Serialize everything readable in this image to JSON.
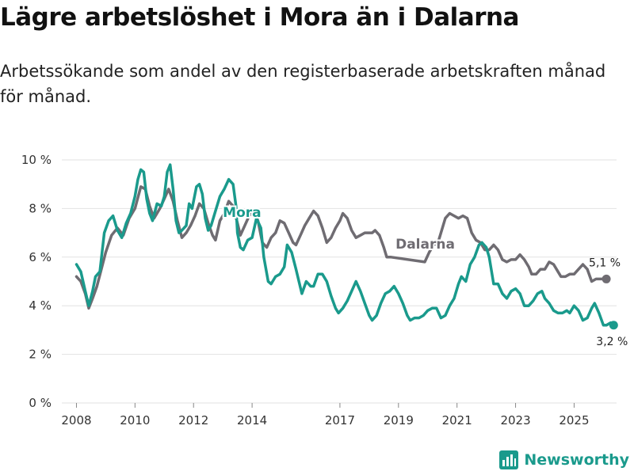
{
  "header": {
    "title": "Lägre arbetslöshet i Mora än i Dalarna",
    "subtitle": "Arbetssökande som andel av den registerbaserade arbetskraften månad för månad."
  },
  "brand": {
    "name": "Newsworthy",
    "color": "#1a9a8c"
  },
  "chart_data": {
    "type": "line",
    "title": "Lägre arbetslöshet i Mora än i Dalarna",
    "xlabel": "",
    "ylabel": "",
    "xlim": [
      2007.5,
      2026.45
    ],
    "ylim": [
      0,
      10
    ],
    "y_ticks": [
      0,
      2,
      4,
      6,
      8,
      10
    ],
    "y_tick_labels": [
      "0 %",
      "2 %",
      "4 %",
      "6 %",
      "8 %",
      "10 %"
    ],
    "x_ticks": [
      2008,
      2010,
      2012,
      2014,
      2017,
      2019,
      2021,
      2023,
      2025
    ],
    "x_tick_labels": [
      "2008",
      "2010",
      "2012",
      "2014",
      "2017",
      "2019",
      "2021",
      "2023",
      "2025"
    ],
    "grid": true,
    "legend": "inline labels",
    "series": [
      {
        "name": "Dalarna",
        "color": "#6f6c72",
        "end_label": "5,1 %",
        "points": [
          [
            2008.0,
            5.2
          ],
          [
            2008.15,
            5.0
          ],
          [
            2008.3,
            4.5
          ],
          [
            2008.42,
            3.9
          ],
          [
            2008.55,
            4.3
          ],
          [
            2008.7,
            4.8
          ],
          [
            2008.85,
            5.5
          ],
          [
            2009.0,
            6.2
          ],
          [
            2009.2,
            6.9
          ],
          [
            2009.4,
            7.2
          ],
          [
            2009.6,
            6.9
          ],
          [
            2009.8,
            7.6
          ],
          [
            2010.0,
            8.0
          ],
          [
            2010.2,
            8.9
          ],
          [
            2010.35,
            8.8
          ],
          [
            2010.5,
            8.1
          ],
          [
            2010.65,
            7.6
          ],
          [
            2010.85,
            8.0
          ],
          [
            2011.0,
            8.4
          ],
          [
            2011.15,
            8.8
          ],
          [
            2011.3,
            8.3
          ],
          [
            2011.45,
            7.5
          ],
          [
            2011.6,
            6.8
          ],
          [
            2011.75,
            7.0
          ],
          [
            2011.9,
            7.3
          ],
          [
            2012.05,
            7.7
          ],
          [
            2012.2,
            8.2
          ],
          [
            2012.35,
            8.0
          ],
          [
            2012.5,
            7.4
          ],
          [
            2012.65,
            6.9
          ],
          [
            2012.75,
            6.7
          ],
          [
            2012.9,
            7.5
          ],
          [
            2013.05,
            7.8
          ],
          [
            2013.2,
            8.3
          ],
          [
            2013.35,
            8.1
          ],
          [
            2013.5,
            7.4
          ],
          [
            2013.6,
            6.9
          ],
          [
            2013.75,
            7.3
          ],
          [
            2013.9,
            7.7
          ],
          [
            2014.05,
            7.9
          ],
          [
            2014.2,
            7.5
          ],
          [
            2014.35,
            6.6
          ],
          [
            2014.5,
            6.4
          ],
          [
            2014.65,
            6.8
          ],
          [
            2014.8,
            7.0
          ],
          [
            2014.95,
            7.5
          ],
          [
            2015.1,
            7.4
          ],
          [
            2015.25,
            7.0
          ],
          [
            2015.4,
            6.6
          ],
          [
            2015.5,
            6.5
          ],
          [
            2015.65,
            6.9
          ],
          [
            2015.8,
            7.3
          ],
          [
            2015.95,
            7.6
          ],
          [
            2016.1,
            7.9
          ],
          [
            2016.25,
            7.7
          ],
          [
            2016.4,
            7.2
          ],
          [
            2016.55,
            6.6
          ],
          [
            2016.7,
            6.8
          ],
          [
            2016.85,
            7.2
          ],
          [
            2017.0,
            7.5
          ],
          [
            2017.1,
            7.8
          ],
          [
            2017.25,
            7.6
          ],
          [
            2017.4,
            7.1
          ],
          [
            2017.55,
            6.8
          ],
          [
            2017.7,
            6.9
          ],
          [
            2017.85,
            7.0
          ],
          [
            2018.0,
            7.0
          ],
          [
            2018.1,
            7.0
          ],
          [
            2018.2,
            7.1
          ],
          [
            2018.35,
            6.9
          ],
          [
            2018.5,
            6.4
          ],
          [
            2018.6,
            6.0
          ],
          [
            2018.75,
            6.0
          ],
          [
            2019.9,
            5.8
          ],
          [
            2020.05,
            6.2
          ],
          [
            2020.2,
            6.5
          ],
          [
            2020.35,
            6.6
          ],
          [
            2020.45,
            7.0
          ],
          [
            2020.6,
            7.6
          ],
          [
            2020.75,
            7.8
          ],
          [
            2020.9,
            7.7
          ],
          [
            2021.05,
            7.6
          ],
          [
            2021.2,
            7.7
          ],
          [
            2021.35,
            7.6
          ],
          [
            2021.5,
            7.0
          ],
          [
            2021.65,
            6.7
          ],
          [
            2021.8,
            6.6
          ],
          [
            2021.95,
            6.3
          ],
          [
            2022.1,
            6.3
          ],
          [
            2022.25,
            6.5
          ],
          [
            2022.4,
            6.3
          ],
          [
            2022.55,
            5.9
          ],
          [
            2022.7,
            5.8
          ],
          [
            2022.85,
            5.9
          ],
          [
            2023.0,
            5.9
          ],
          [
            2023.15,
            6.1
          ],
          [
            2023.3,
            5.9
          ],
          [
            2023.45,
            5.6
          ],
          [
            2023.55,
            5.3
          ],
          [
            2023.7,
            5.3
          ],
          [
            2023.85,
            5.5
          ],
          [
            2024.0,
            5.5
          ],
          [
            2024.15,
            5.8
          ],
          [
            2024.3,
            5.7
          ],
          [
            2024.45,
            5.4
          ],
          [
            2024.55,
            5.2
          ],
          [
            2024.7,
            5.2
          ],
          [
            2024.85,
            5.3
          ],
          [
            2025.0,
            5.3
          ],
          [
            2025.15,
            5.5
          ],
          [
            2025.3,
            5.7
          ],
          [
            2025.45,
            5.5
          ],
          [
            2025.6,
            5.0
          ],
          [
            2025.75,
            5.1
          ],
          [
            2025.9,
            5.1
          ],
          [
            2026.1,
            5.1
          ]
        ]
      },
      {
        "name": "Mora",
        "color": "#1a9a8c",
        "end_label": "3,2 %",
        "points": [
          [
            2008.0,
            5.7
          ],
          [
            2008.15,
            5.4
          ],
          [
            2008.3,
            4.6
          ],
          [
            2008.42,
            4.0
          ],
          [
            2008.55,
            4.6
          ],
          [
            2008.65,
            5.2
          ],
          [
            2008.8,
            5.4
          ],
          [
            2008.95,
            7.0
          ],
          [
            2009.1,
            7.5
          ],
          [
            2009.25,
            7.7
          ],
          [
            2009.4,
            7.1
          ],
          [
            2009.55,
            6.8
          ],
          [
            2009.7,
            7.4
          ],
          [
            2009.85,
            7.8
          ],
          [
            2010.0,
            8.5
          ],
          [
            2010.1,
            9.2
          ],
          [
            2010.2,
            9.6
          ],
          [
            2010.3,
            9.5
          ],
          [
            2010.4,
            8.4
          ],
          [
            2010.5,
            7.8
          ],
          [
            2010.6,
            7.5
          ],
          [
            2010.75,
            8.2
          ],
          [
            2010.9,
            8.1
          ],
          [
            2011.0,
            8.5
          ],
          [
            2011.1,
            9.5
          ],
          [
            2011.2,
            9.8
          ],
          [
            2011.3,
            8.8
          ],
          [
            2011.4,
            7.5
          ],
          [
            2011.5,
            7.0
          ],
          [
            2011.6,
            7.1
          ],
          [
            2011.75,
            7.3
          ],
          [
            2011.85,
            8.2
          ],
          [
            2011.95,
            8.0
          ],
          [
            2012.1,
            8.9
          ],
          [
            2012.2,
            9.0
          ],
          [
            2012.3,
            8.6
          ],
          [
            2012.4,
            7.6
          ],
          [
            2012.5,
            7.1
          ],
          [
            2012.6,
            7.3
          ],
          [
            2012.75,
            7.9
          ],
          [
            2012.9,
            8.5
          ],
          [
            2013.05,
            8.8
          ],
          [
            2013.2,
            9.2
          ],
          [
            2013.35,
            9.0
          ],
          [
            2013.45,
            8.1
          ],
          [
            2013.5,
            7.0
          ],
          [
            2013.6,
            6.4
          ],
          [
            2013.7,
            6.3
          ],
          [
            2013.85,
            6.7
          ],
          [
            2014.0,
            6.8
          ],
          [
            2014.15,
            7.6
          ],
          [
            2014.3,
            7.2
          ],
          [
            2014.4,
            6.0
          ],
          [
            2014.55,
            5.0
          ],
          [
            2014.65,
            4.9
          ],
          [
            2014.8,
            5.2
          ],
          [
            2014.95,
            5.3
          ],
          [
            2015.1,
            5.6
          ],
          [
            2015.2,
            6.5
          ],
          [
            2015.35,
            6.2
          ],
          [
            2015.5,
            5.5
          ],
          [
            2015.6,
            5.0
          ],
          [
            2015.7,
            4.5
          ],
          [
            2015.85,
            5.0
          ],
          [
            2016.0,
            4.8
          ],
          [
            2016.1,
            4.8
          ],
          [
            2016.25,
            5.3
          ],
          [
            2016.4,
            5.3
          ],
          [
            2016.55,
            5.0
          ],
          [
            2016.7,
            4.4
          ],
          [
            2016.85,
            3.9
          ],
          [
            2016.95,
            3.7
          ],
          [
            2017.1,
            3.9
          ],
          [
            2017.25,
            4.2
          ],
          [
            2017.4,
            4.6
          ],
          [
            2017.55,
            5.0
          ],
          [
            2017.7,
            4.6
          ],
          [
            2017.85,
            4.1
          ],
          [
            2018.0,
            3.6
          ],
          [
            2018.1,
            3.4
          ],
          [
            2018.25,
            3.6
          ],
          [
            2018.4,
            4.1
          ],
          [
            2018.55,
            4.5
          ],
          [
            2018.7,
            4.6
          ],
          [
            2018.85,
            4.8
          ],
          [
            2019.0,
            4.5
          ],
          [
            2019.15,
            4.1
          ],
          [
            2019.3,
            3.6
          ],
          [
            2019.4,
            3.4
          ],
          [
            2019.55,
            3.5
          ],
          [
            2019.7,
            3.5
          ],
          [
            2019.85,
            3.6
          ],
          [
            2020.0,
            3.8
          ],
          [
            2020.15,
            3.9
          ],
          [
            2020.3,
            3.9
          ],
          [
            2020.45,
            3.5
          ],
          [
            2020.6,
            3.6
          ],
          [
            2020.75,
            4.0
          ],
          [
            2020.9,
            4.3
          ],
          [
            2021.05,
            4.9
          ],
          [
            2021.15,
            5.2
          ],
          [
            2021.3,
            5.0
          ],
          [
            2021.45,
            5.7
          ],
          [
            2021.6,
            6.0
          ],
          [
            2021.75,
            6.5
          ],
          [
            2021.85,
            6.6
          ],
          [
            2022.0,
            6.4
          ],
          [
            2022.1,
            6.0
          ],
          [
            2022.25,
            4.9
          ],
          [
            2022.4,
            4.9
          ],
          [
            2022.55,
            4.5
          ],
          [
            2022.7,
            4.3
          ],
          [
            2022.85,
            4.6
          ],
          [
            2023.0,
            4.7
          ],
          [
            2023.15,
            4.5
          ],
          [
            2023.3,
            4.0
          ],
          [
            2023.45,
            4.0
          ],
          [
            2023.6,
            4.2
          ],
          [
            2023.75,
            4.5
          ],
          [
            2023.9,
            4.6
          ],
          [
            2024.0,
            4.3
          ],
          [
            2024.15,
            4.1
          ],
          [
            2024.3,
            3.8
          ],
          [
            2024.45,
            3.7
          ],
          [
            2024.6,
            3.7
          ],
          [
            2024.75,
            3.8
          ],
          [
            2024.85,
            3.7
          ],
          [
            2025.0,
            4.0
          ],
          [
            2025.15,
            3.8
          ],
          [
            2025.3,
            3.4
          ],
          [
            2025.45,
            3.5
          ],
          [
            2025.6,
            3.9
          ],
          [
            2025.7,
            4.1
          ],
          [
            2025.85,
            3.7
          ],
          [
            2026.0,
            3.2
          ],
          [
            2026.1,
            3.2
          ],
          [
            2026.25,
            3.3
          ],
          [
            2026.35,
            3.2
          ]
        ]
      }
    ]
  }
}
